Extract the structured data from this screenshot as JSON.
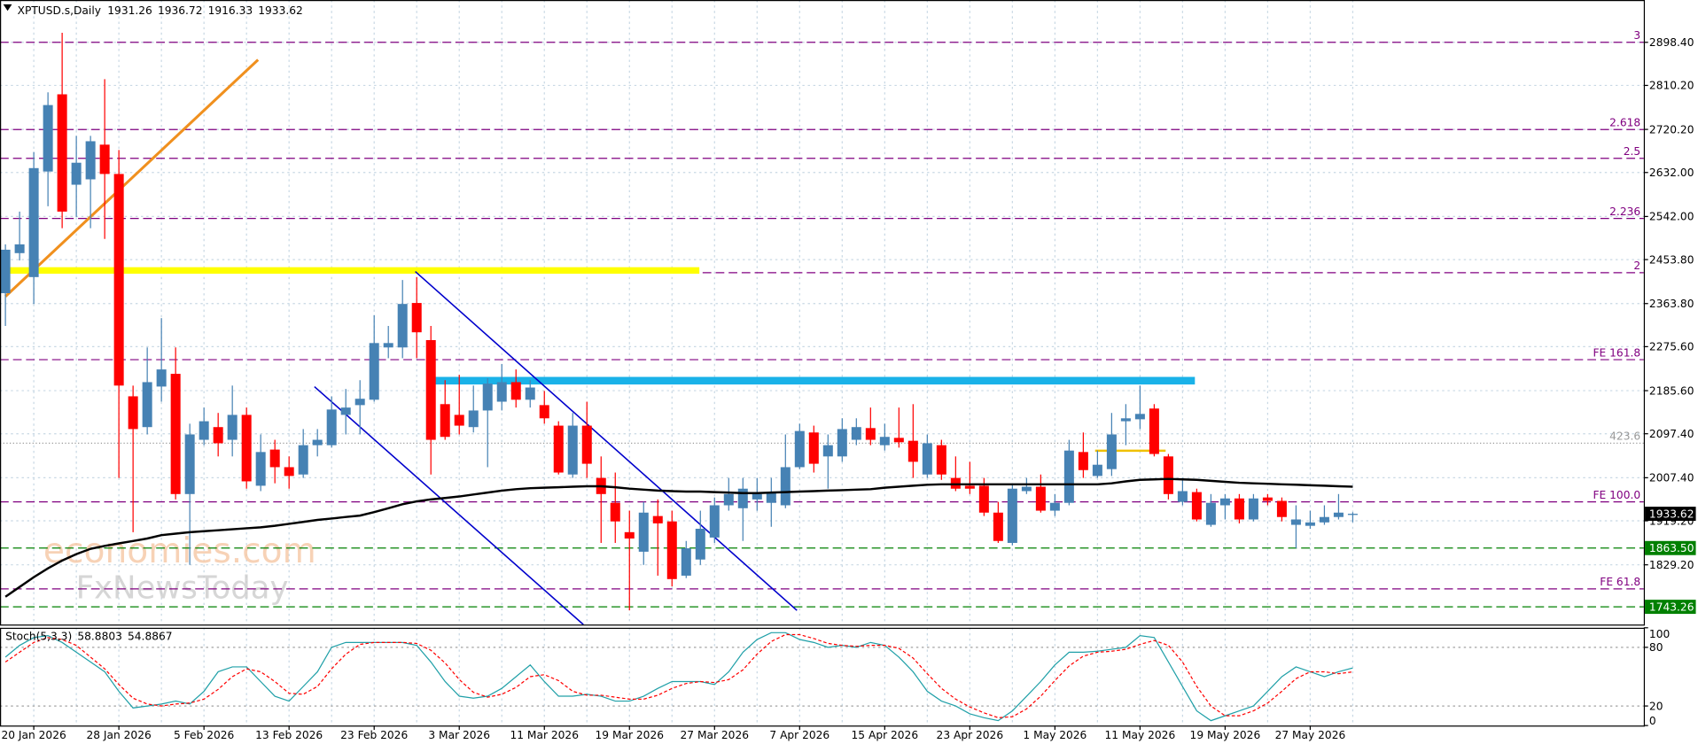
{
  "chart_data": {
    "type": "candlestick",
    "title": "XPTUSD.s,Daily",
    "categories": [
      null,
      null,
      "20 Jan 2026",
      null,
      null,
      null,
      null,
      null,
      "28 Jan 2026",
      null,
      null,
      null,
      null,
      null,
      "5 Feb 2026",
      null,
      null,
      null,
      null,
      null,
      "13 Feb 2026",
      null,
      null,
      null,
      null,
      null,
      "23 Feb 2026",
      null,
      null,
      null,
      null,
      null,
      "3 Mar 2026",
      null,
      null,
      null,
      null,
      null,
      "11 Mar 2026",
      null,
      null,
      null,
      null,
      null,
      "19 Mar 2026",
      null,
      null,
      null,
      null,
      null,
      "27 Mar 2026",
      null,
      null,
      null,
      null,
      null,
      "7 Apr 2026",
      null,
      null,
      null,
      null,
      null,
      "15 Apr 2026",
      null,
      null,
      null,
      null,
      null,
      "23 Apr 2026",
      null,
      null,
      null,
      null,
      null,
      "1 May 2026",
      null,
      null,
      null,
      null,
      null,
      "11 May 2026",
      null,
      null,
      null,
      null,
      null,
      "19 May 2026",
      null,
      null,
      null,
      null,
      null,
      "27 May 2026",
      null,
      null,
      null
    ],
    "open": [
      2385,
      2467,
      2418,
      2634,
      2792,
      2607,
      2618,
      2689,
      2629,
      2174,
      2111,
      2194,
      2220,
      1974,
      2085,
      2111,
      2085,
      2136,
      1991,
      2065,
      2029,
      2014,
      2074,
      2074,
      2136,
      2156,
      2167,
      2274,
      2274,
      2365,
      2289,
      2158,
      2136,
      2111,
      2145,
      2163,
      2203,
      2167,
      2156,
      2114,
      2014,
      2114,
      2007,
      1956,
      1896,
      1856,
      1929,
      1918,
      1807,
      1840,
      1885,
      1951,
      1945,
      1963,
      1956,
      1951,
      2029,
      2100,
      2051,
      2051,
      2085,
      2109,
      2074,
      2089,
      2083,
      2014,
      2074,
      2007,
      1991,
      1991,
      1936,
      1874,
      1980,
      1989,
      1940,
      1956,
      2060,
      2011,
      2025,
      2123,
      2127,
      2149,
      2051,
      1958,
      1978,
      1911,
      1951,
      1965,
      1922,
      1967,
      1960,
      1911,
      1909,
      1916,
      1927,
      1931.26
    ],
    "high": [
      2485,
      2552,
      2674,
      2796,
      2918,
      2707,
      2707,
      2823,
      2678,
      2196,
      2274,
      2334,
      2274,
      2118,
      2151,
      2140,
      2196,
      2151,
      2096,
      2085,
      2051,
      2107,
      2107,
      2174,
      2189,
      2207,
      2340,
      2318,
      2412,
      2418,
      2318,
      2207,
      2218,
      2196,
      2211,
      2240,
      2229,
      2207,
      2185,
      2123,
      2140,
      2163,
      2051,
      2018,
      1940,
      1958,
      1963,
      1940,
      1878,
      1940,
      1967,
      2007,
      2007,
      2007,
      2007,
      2096,
      2118,
      2114,
      2096,
      2129,
      2129,
      2151,
      2118,
      2151,
      2158,
      2096,
      2085,
      2051,
      2040,
      2007,
      1958,
      1996,
      2007,
      2014,
      1974,
      2085,
      2100,
      2063,
      2140,
      2158,
      2196,
      2158,
      2056,
      2007,
      1985,
      1974,
      1974,
      1974,
      1974,
      1974,
      1967,
      1951,
      1940,
      1951,
      1974,
      1936.72
    ],
    "low": [
      2318,
      2452,
      2363,
      2563,
      2518,
      2541,
      2518,
      2496,
      2007,
      1896,
      2096,
      2163,
      1963,
      1829,
      2074,
      2051,
      2051,
      1985,
      1980,
      1996,
      1985,
      2007,
      2051,
      2069,
      2096,
      2096,
      2163,
      2252,
      2252,
      2252,
      2014,
      2085,
      2096,
      2100,
      2029,
      2145,
      2151,
      2151,
      2118,
      2014,
      2007,
      2007,
      1874,
      1874,
      1736,
      1829,
      1807,
      1785,
      1802,
      1829,
      1874,
      1940,
      1878,
      1940,
      1907,
      1945,
      2025,
      2018,
      1985,
      2040,
      2074,
      2074,
      2063,
      2069,
      2007,
      2007,
      2003,
      1980,
      1974,
      1929,
      1874,
      1869,
      1974,
      1936,
      1929,
      1951,
      2007,
      2007,
      2011,
      2074,
      2107,
      2051,
      1963,
      1951,
      1918,
      1907,
      1922,
      1914,
      1918,
      1951,
      1918,
      1863,
      1903,
      1911,
      1922,
      1916.33
    ],
    "close": [
      2474,
      2485,
      2641,
      2770,
      2552,
      2652,
      2696,
      2629,
      2196,
      2107,
      2203,
      2229,
      1974,
      2096,
      2123,
      2078,
      2136,
      2000,
      2060,
      2029,
      2011,
      2074,
      2085,
      2147,
      2151,
      2169,
      2283,
      2283,
      2363,
      2305,
      2085,
      2091,
      2114,
      2145,
      2200,
      2203,
      2167,
      2192,
      2129,
      2018,
      2114,
      2036,
      1974,
      1918,
      1883,
      1936,
      1914,
      1800,
      1863,
      1903,
      1951,
      1974,
      1985,
      1974,
      1978,
      2029,
      2103,
      2036,
      2074,
      2107,
      2111,
      2085,
      2091,
      2080,
      2040,
      2078,
      2014,
      1985,
      1985,
      1936,
      1878,
      1985,
      1989,
      1940,
      1956,
      2063,
      2023,
      2034,
      2096,
      2129,
      2138,
      2056,
      1974,
      1980,
      1922,
      1956,
      1965,
      1922,
      1965,
      1960,
      1927,
      1922,
      1916,
      1927,
      1936,
      1933.62
    ],
    "up_color": "#4682b4",
    "down_color": "#ff0000",
    "ylim": [
      1707,
      2985
    ],
    "yticks": [
      {
        "value": 2898.4,
        "label": "2898.40"
      },
      {
        "value": 2810.2,
        "label": "2810.20"
      },
      {
        "value": 2720.2,
        "label": "2720.20"
      },
      {
        "value": 2632,
        "label": "2632.00"
      },
      {
        "value": 2542,
        "label": "2542.00"
      },
      {
        "value": 2453.8,
        "label": "2453.80"
      },
      {
        "value": 2363.8,
        "label": "2363.80"
      },
      {
        "value": 2275.6,
        "label": "2275.60"
      },
      {
        "value": 2185.6,
        "label": "2185.60"
      },
      {
        "value": 2097.4,
        "label": "2097.40"
      },
      {
        "value": 2007.4,
        "label": "2007.40"
      },
      {
        "value": 1919.2,
        "label": "1919.20"
      },
      {
        "value": 1829.2,
        "label": "1829.20"
      }
    ],
    "grid": true,
    "ma": {
      "color": "#000000",
      "values": [
        1764,
        1784,
        1804,
        1822,
        1838,
        1851,
        1862,
        1868,
        1873,
        1878,
        1883,
        1890,
        1893,
        1896,
        1898,
        1900,
        1902,
        1904,
        1906,
        1909,
        1913,
        1917,
        1921,
        1924,
        1927,
        1930,
        1937,
        1945,
        1953,
        1959,
        1963,
        1966,
        1969,
        1973,
        1977,
        1981,
        1984,
        1986,
        1987,
        1988,
        1989,
        1990,
        1990,
        1988,
        1985,
        1983,
        1981,
        1980,
        1979,
        1979,
        1978,
        1977,
        1976,
        1976,
        1977,
        1978,
        1979,
        1980,
        1981,
        1982,
        1983,
        1984,
        1987,
        1989,
        1991,
        1993,
        1994,
        1994,
        1994,
        1994,
        1994,
        1994,
        1994,
        1994,
        1994,
        1994,
        1994,
        1994,
        1996,
        2000,
        2003,
        2004,
        2005,
        2004,
        2003,
        2001,
        1999,
        1997,
        1996,
        1995,
        1994,
        1993,
        1992,
        1991,
        1990,
        1989
      ]
    },
    "levels": [
      {
        "label": "3",
        "value": 2898.4,
        "color": "#800080",
        "style": "dash"
      },
      {
        "label": "2.618",
        "value": 2720,
        "color": "#800080",
        "style": "dash"
      },
      {
        "label": "2.5",
        "value": 2661,
        "color": "#800080",
        "style": "dash"
      },
      {
        "label": "2.236",
        "value": 2538,
        "color": "#800080",
        "style": "dash"
      },
      {
        "label": "2",
        "value": 2427,
        "color": "#800080",
        "style": "dash"
      },
      {
        "label": "FE 161.8",
        "value": 2249,
        "color": "#800080",
        "style": "dash"
      },
      {
        "label": "423.6",
        "value": 2078,
        "color": "#999999",
        "style": "dot"
      },
      {
        "label": "FE 100.0",
        "value": 1958,
        "color": "#800080",
        "style": "dash"
      },
      {
        "label": "FE 61.8",
        "value": 1780,
        "color": "#800080",
        "style": "dash"
      },
      {
        "label": "1863.50",
        "value": 1863.5,
        "color": "#008000",
        "style": "box"
      },
      {
        "label": "1743.26",
        "value": 1743.26,
        "color": "#008000",
        "style": "box"
      }
    ],
    "last_price": 1933.62,
    "watermark": [
      "economies.com",
      "FxNewsToday"
    ],
    "stoch": {
      "title": "Stoch(5,3,3)",
      "ylim": [
        0,
        100
      ],
      "yticks": [
        0,
        20,
        80,
        100
      ],
      "levels": [
        20,
        80
      ],
      "k": {
        "color": "#20a0a8",
        "values": [
          70,
          82,
          90,
          92,
          85,
          75,
          65,
          55,
          35,
          18,
          20,
          22,
          25,
          22,
          35,
          55,
          60,
          60,
          45,
          30,
          25,
          40,
          55,
          80,
          85,
          85,
          85,
          85,
          85,
          82,
          65,
          45,
          30,
          28,
          30,
          38,
          50,
          62,
          45,
          30,
          30,
          32,
          30,
          25,
          25,
          30,
          38,
          45,
          45,
          45,
          42,
          55,
          75,
          88,
          95,
          95,
          88,
          85,
          80,
          82,
          80,
          85,
          82,
          70,
          55,
          35,
          25,
          20,
          12,
          8,
          5,
          15,
          30,
          45,
          62,
          75,
          75,
          76,
          78,
          80,
          92,
          90,
          65,
          40,
          15,
          5,
          10,
          15,
          20,
          35,
          50,
          60,
          55,
          50,
          55,
          58.8803
        ]
      },
      "d": {
        "color": "#ff0000",
        "values": [
          65,
          75,
          85,
          90,
          88,
          82,
          70,
          58,
          42,
          28,
          22,
          20,
          22,
          23,
          27,
          37,
          50,
          58,
          55,
          45,
          33,
          32,
          40,
          58,
          73,
          83,
          85,
          85,
          85,
          84,
          77,
          64,
          47,
          34,
          29,
          32,
          39,
          50,
          52,
          46,
          35,
          31,
          31,
          29,
          27,
          27,
          31,
          38,
          43,
          45,
          44,
          47,
          57,
          73,
          86,
          93,
          93,
          89,
          84,
          82,
          81,
          82,
          82,
          79,
          69,
          53,
          38,
          27,
          19,
          13,
          8,
          9,
          17,
          30,
          46,
          61,
          71,
          75,
          76,
          78,
          83,
          87,
          82,
          65,
          40,
          20,
          10,
          10,
          15,
          23,
          35,
          48,
          55,
          55,
          53,
          54.8867
        ]
      }
    }
  }
}
